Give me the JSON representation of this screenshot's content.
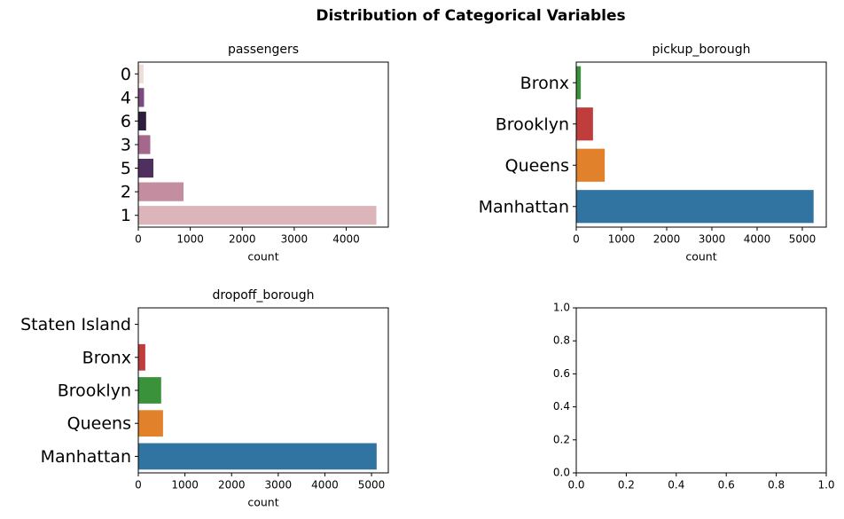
{
  "title": "Distribution of Categorical Variables",
  "chart_data": [
    {
      "type": "barh",
      "title": "passengers",
      "xlabel": "count",
      "categories": [
        "0",
        "4",
        "6",
        "3",
        "5",
        "2",
        "1"
      ],
      "values": [
        100,
        110,
        150,
        230,
        290,
        870,
        4580
      ],
      "colors": [
        "#f0dcd9",
        "#7b4a7e",
        "#2d1e3e",
        "#a6678f",
        "#4f2f5e",
        "#c48da0",
        "#dcb5ba"
      ],
      "xlim": [
        0,
        4810
      ],
      "xticks": [
        0,
        1000,
        2000,
        3000,
        4000
      ]
    },
    {
      "type": "barh",
      "title": "pickup_borough",
      "xlabel": "count",
      "categories": [
        "Bronx",
        "Brooklyn",
        "Queens",
        "Manhattan"
      ],
      "values": [
        100,
        370,
        630,
        5250
      ],
      "colors": [
        "#3a923a",
        "#c03d3e",
        "#e1812c",
        "#3274a1"
      ],
      "xlim": [
        0,
        5530
      ],
      "xticks": [
        0,
        1000,
        2000,
        3000,
        4000,
        5000
      ]
    },
    {
      "type": "barh",
      "title": "dropoff_borough",
      "xlabel": "count",
      "categories": [
        "Staten Island",
        "Bronx",
        "Brooklyn",
        "Queens",
        "Manhattan"
      ],
      "values": [
        2,
        150,
        490,
        530,
        5110
      ],
      "colors": [
        "#9372b2",
        "#c03d3e",
        "#3a923a",
        "#e1812c",
        "#3274a1"
      ],
      "xlim": [
        0,
        5360
      ],
      "xticks": [
        0,
        1000,
        2000,
        3000,
        4000,
        5000
      ]
    },
    {
      "type": "empty",
      "xlim": [
        0,
        1
      ],
      "ylim": [
        0,
        1
      ],
      "xticks": [
        {
          "value": 0,
          "label": "0.0"
        },
        {
          "value": 0.2,
          "label": "0.2"
        },
        {
          "value": 0.4,
          "label": "0.4"
        },
        {
          "value": 0.6,
          "label": "0.6"
        },
        {
          "value": 0.8,
          "label": "0.8"
        },
        {
          "value": 1,
          "label": "1.0"
        }
      ],
      "yticks": [
        {
          "value": 0,
          "label": "0.0"
        },
        {
          "value": 0.2,
          "label": "0.2"
        },
        {
          "value": 0.4,
          "label": "0.4"
        },
        {
          "value": 0.6,
          "label": "0.6"
        },
        {
          "value": 0.8,
          "label": "0.8"
        },
        {
          "value": 1,
          "label": "1.0"
        }
      ]
    }
  ]
}
